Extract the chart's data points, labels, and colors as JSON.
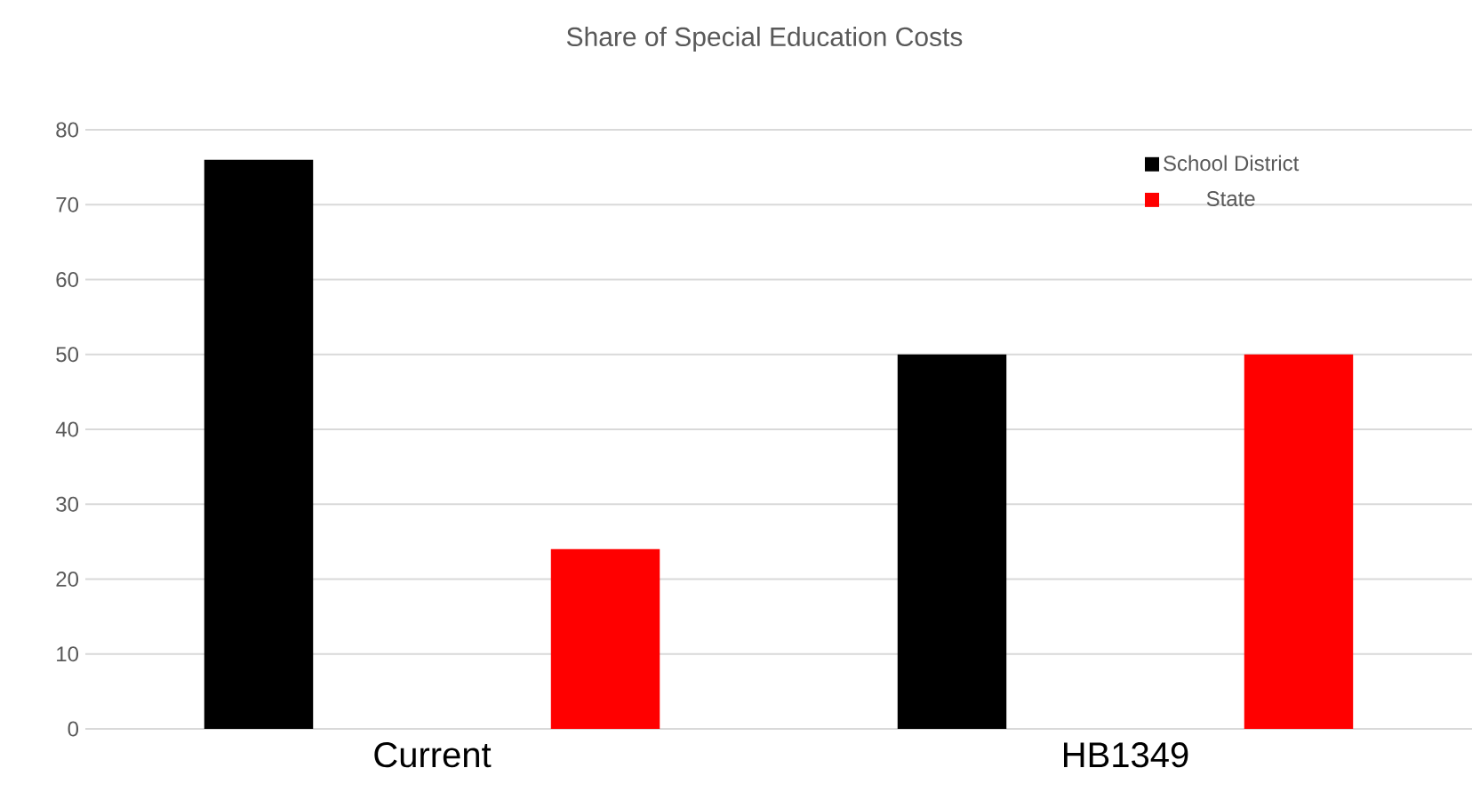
{
  "chart_data": {
    "type": "bar",
    "title": "Share of Special Education Costs",
    "categories": [
      "Current",
      "HB1349"
    ],
    "series": [
      {
        "name": "School District",
        "color": "#000000",
        "values": [
          76,
          50
        ]
      },
      {
        "name": "State",
        "color": "#ff0000",
        "values": [
          24,
          50
        ]
      }
    ],
    "ylim": [
      0,
      80
    ],
    "yticks": [
      0,
      10,
      20,
      30,
      40,
      50,
      60,
      70,
      80
    ],
    "grid": "y",
    "legend": "top right"
  }
}
